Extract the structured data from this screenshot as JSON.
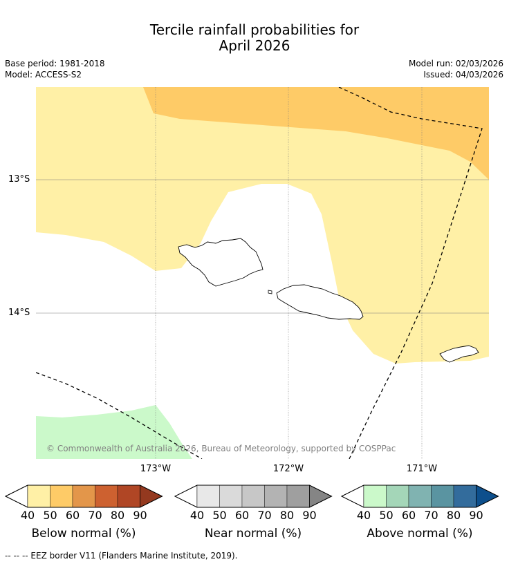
{
  "title_line1": "Tercile rainfall probabilities for",
  "title_line2": "April 2026",
  "base_period": "Base period: 1981-2018",
  "model": "Model: ACCESS-S2",
  "model_run": "Model run: 02/03/2026",
  "issued": "Issued: 04/03/2026",
  "map": {
    "lat_labels": [
      "13°S",
      "14°S"
    ],
    "lon_labels": [
      "173°W",
      "172°W",
      "171°W"
    ],
    "copyright": "© Commonwealth of Australia 2026, Bureau of Meteorology, supported by COSPPac"
  },
  "colorbars": [
    {
      "label": "Below normal (%)",
      "ticks": [
        "40",
        "50",
        "60",
        "70",
        "80",
        "90"
      ],
      "colors": [
        "#fff0a6",
        "#fecb67",
        "#e3964a",
        "#cd6130",
        "#b04625",
        "#94391f"
      ]
    },
    {
      "label": "Near normal (%)",
      "ticks": [
        "40",
        "50",
        "60",
        "70",
        "80",
        "90"
      ],
      "colors": [
        "#e8e8e8",
        "#dadada",
        "#c7c7c7",
        "#b3b3b3",
        "#9f9f9f",
        "#858585"
      ]
    },
    {
      "label": "Above normal (%)",
      "ticks": [
        "40",
        "50",
        "60",
        "70",
        "80",
        "90"
      ],
      "colors": [
        "#cbf9ca",
        "#a4d6b8",
        "#80b3b1",
        "#5a94a1",
        "#336c9c",
        "#0d4f8c"
      ]
    }
  ],
  "footer": "--  --  -- EEZ border V11 (Flanders Marine Institute, 2019)."
}
